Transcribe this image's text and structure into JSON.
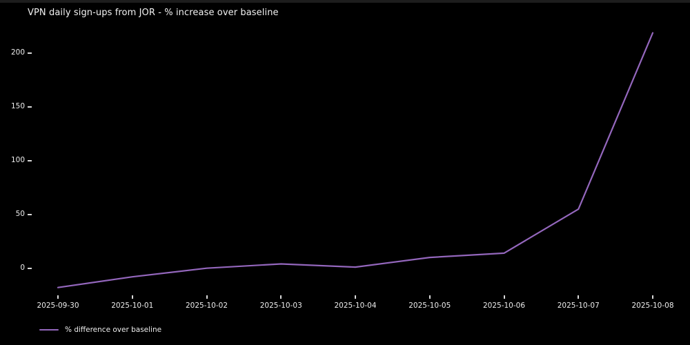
{
  "figure": {
    "background": "#000000",
    "text_color": "#ededed"
  },
  "chart_data": {
    "type": "line",
    "title": "VPN daily sign-ups from JOR - % increase over baseline",
    "x": [
      "2025-09-30",
      "2025-10-01",
      "2025-10-02",
      "2025-10-03",
      "2025-10-04",
      "2025-10-05",
      "2025-10-06",
      "2025-10-07",
      "2025-10-08"
    ],
    "series": [
      {
        "name": "% difference over baseline",
        "values": [
          -18,
          -8,
          0,
          4,
          1,
          10,
          14,
          55,
          219
        ]
      }
    ],
    "xlabel": "",
    "ylabel": "",
    "yticks": [
      0,
      50,
      100,
      150,
      200
    ],
    "ylim": [
      -27,
      225
    ],
    "grid": false,
    "legend_position": "lower-left-below-plot",
    "line_color": "#9467bd",
    "tick_color": "#d9d9d9"
  }
}
